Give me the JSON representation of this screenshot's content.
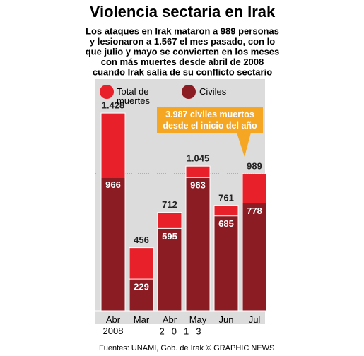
{
  "chart_data": {
    "type": "bar",
    "title": "Violencia sectaria en Irak",
    "subtitle": [
      "Los ataques en Irak mataron a 989 personas",
      "y lesionaron a 1.567 el mes pasado, con lo",
      "que julio y mayo se convierten en los meses",
      "con más muertes  desde abril de 2008",
      "cuando Irak salía de su conflicto sectario"
    ],
    "categories": [
      "Abr 2008",
      "Mar",
      "Abr",
      "May",
      "Jun",
      "Jul"
    ],
    "year_label": "2013",
    "series": [
      {
        "name": "Total de muertes",
        "color": "#e8202a",
        "values": [
          1428,
          456,
          712,
          1045,
          761,
          989
        ],
        "value_labels": [
          "1.428",
          "456",
          "712",
          "1.045",
          "761",
          "989"
        ]
      },
      {
        "name": "Civiles",
        "color": "#8c1c24",
        "values": [
          966,
          229,
          595,
          963,
          685,
          778
        ]
      }
    ],
    "annotation": "3.987 civiles muertos desde el inicio del año",
    "ylim": [
      0,
      1500
    ],
    "source": "Fuentes: UNAMI, Gob. de Irak  © GRAPHIC NEWS"
  }
}
